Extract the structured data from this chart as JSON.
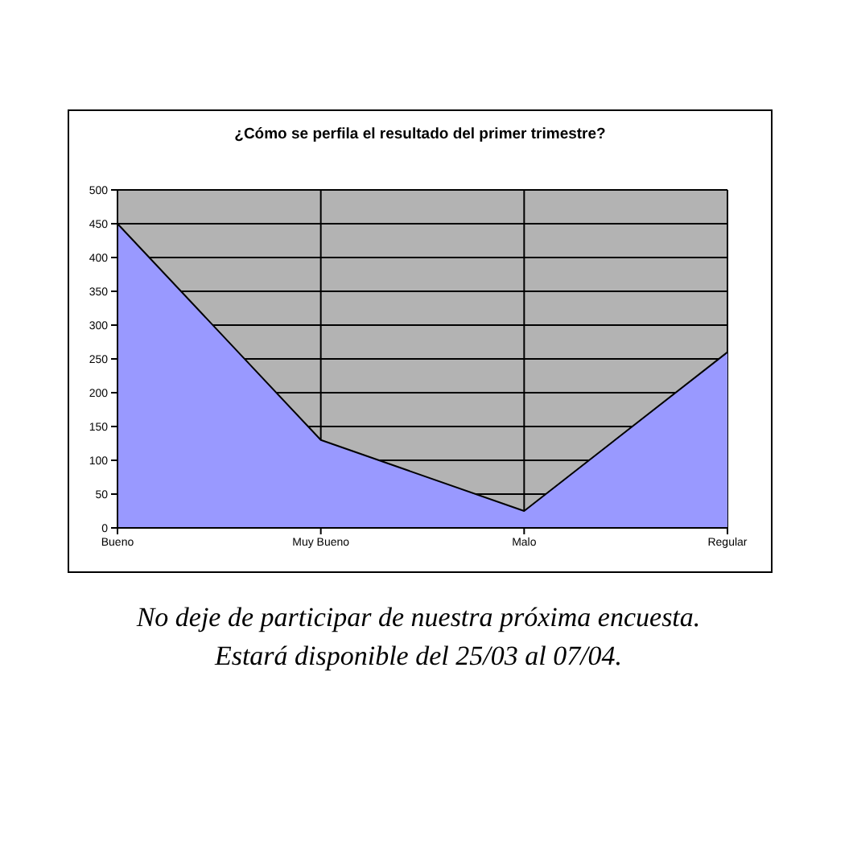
{
  "chart_data": {
    "type": "area",
    "title": "¿Cómo se perfila el resultado del primer trimestre?",
    "categories": [
      "Bueno",
      "Muy Bueno",
      "Malo",
      "Regular"
    ],
    "values": [
      450,
      130,
      25,
      260
    ],
    "color": "#9999ff",
    "ylim": [
      0,
      500
    ],
    "yticks": [
      0,
      50,
      100,
      150,
      200,
      250,
      300,
      350,
      400,
      450,
      500
    ],
    "grid": true,
    "annotations": [
      "No deje de participar de nuestra próxima encuesta.",
      "Estará disponible del 25/03 al 07/04."
    ]
  }
}
